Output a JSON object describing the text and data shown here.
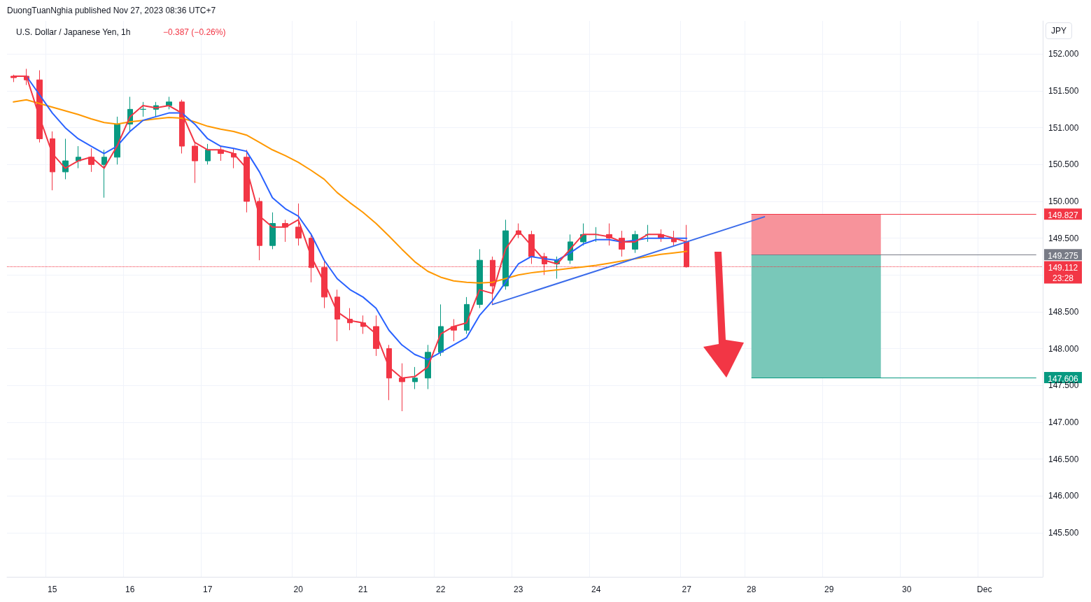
{
  "chart_data": {
    "type": "candlestick",
    "title": "U.S. Dollar / Japanese Yen, 1h",
    "subtitle": "−0.387 (−0.26%)",
    "annotations": [
      "DuongTuanNghia published Nov 27, 2023 08:36 UTC+7",
      "JPY"
    ],
    "categories": [
      null,
      null,
      null,
      "15",
      null,
      null,
      null,
      null,
      null,
      "16",
      null,
      null,
      null,
      null,
      null,
      "17",
      null,
      null,
      null,
      null,
      null,
      null,
      "20",
      null,
      null,
      null,
      null,
      "21",
      null,
      null,
      null,
      null,
      null,
      "22",
      null,
      null,
      null,
      null,
      null,
      "23",
      null,
      null,
      null,
      null,
      null,
      "24",
      null,
      null,
      null,
      null,
      null,
      null,
      "27",
      null,
      null,
      null,
      null,
      "28",
      null,
      null,
      null,
      null,
      null,
      "29",
      null,
      null,
      null,
      null,
      null,
      "30",
      null,
      null,
      null,
      null,
      null,
      "Dec",
      null,
      null,
      null,
      null
    ],
    "series": [
      {
        "colors": [
          "#f23645",
          "#f23645",
          "#f23645",
          "#f23645",
          "#089981",
          "#089981",
          "#f23645",
          "#089981",
          "#089981",
          "#089981",
          "#089981",
          "#089981",
          "#089981",
          "#f23645",
          "#f23645",
          "#089981",
          "#f23645",
          "#f23645",
          "#f23645",
          "#f23645",
          "#089981",
          "#f23645",
          "#f23645",
          "#f23645",
          "#f23645",
          "#f23645",
          "#f23645",
          "#f23645",
          "#f23645",
          "#f23645",
          "#f23645",
          "#089981",
          "#089981",
          "#089981",
          "#f23645",
          "#089981",
          "#089981",
          "#f23645",
          "#089981",
          "#f23645",
          "#f23645",
          "#f23645",
          "#089981",
          "#089981",
          "#089981",
          "#089981",
          "#f23645",
          "#f23645",
          "#089981",
          "#089981",
          "#f23645",
          "#f23645",
          "#f23645",
          null,
          null,
          null,
          null,
          null,
          null,
          null,
          null,
          null,
          null,
          null,
          null,
          null,
          null,
          null,
          null,
          null,
          null,
          null,
          null,
          null,
          null,
          null,
          null,
          null,
          null,
          null
        ],
        "ohlc": [
          [
            151.7,
            151.72,
            151.62,
            151.68
          ],
          [
            151.7,
            151.8,
            151.58,
            151.65
          ],
          [
            151.65,
            151.78,
            150.8,
            150.85
          ],
          [
            150.85,
            150.95,
            150.15,
            150.4
          ],
          [
            150.4,
            150.85,
            150.3,
            150.55
          ],
          [
            150.55,
            150.75,
            150.45,
            150.6
          ],
          [
            150.6,
            150.72,
            150.4,
            150.5
          ],
          [
            150.5,
            150.7,
            150.05,
            150.6
          ],
          [
            150.6,
            151.15,
            150.5,
            151.05
          ],
          [
            151.05,
            151.42,
            150.95,
            151.25
          ],
          [
            151.25,
            151.35,
            151.15,
            151.25
          ],
          [
            151.25,
            151.35,
            151.15,
            151.3
          ],
          [
            151.3,
            151.42,
            151.25,
            151.35
          ],
          [
            151.35,
            151.38,
            150.65,
            150.75
          ],
          [
            150.75,
            150.8,
            150.25,
            150.55
          ],
          [
            150.55,
            150.78,
            150.5,
            150.7
          ],
          [
            150.7,
            150.75,
            150.55,
            150.65
          ],
          [
            150.65,
            150.72,
            150.45,
            150.6
          ],
          [
            150.6,
            150.7,
            149.85,
            150.0
          ],
          [
            150.0,
            150.05,
            149.2,
            149.4
          ],
          [
            149.4,
            149.85,
            149.35,
            149.7
          ],
          [
            149.7,
            149.75,
            149.45,
            149.65
          ],
          [
            149.65,
            149.97,
            149.4,
            149.5
          ],
          [
            149.5,
            149.55,
            148.9,
            149.1
          ],
          [
            149.1,
            149.2,
            148.55,
            148.7
          ],
          [
            148.7,
            148.8,
            148.1,
            148.4
          ],
          [
            148.4,
            148.55,
            148.25,
            148.35
          ],
          [
            148.35,
            148.45,
            148.2,
            148.3
          ],
          [
            148.3,
            148.45,
            147.9,
            148.0
          ],
          [
            148.0,
            148.05,
            147.3,
            147.6
          ],
          [
            147.6,
            147.8,
            147.15,
            147.55
          ],
          [
            147.55,
            147.75,
            147.45,
            147.6
          ],
          [
            147.6,
            148.05,
            147.45,
            147.95
          ],
          [
            147.95,
            148.6,
            147.9,
            148.3
          ],
          [
            148.3,
            148.4,
            148.1,
            148.25
          ],
          [
            148.25,
            148.7,
            148.2,
            148.6
          ],
          [
            148.6,
            149.35,
            148.55,
            149.2
          ],
          [
            149.2,
            149.25,
            148.6,
            148.85
          ],
          [
            148.85,
            149.75,
            148.8,
            149.6
          ],
          [
            149.6,
            149.7,
            149.5,
            149.55
          ],
          [
            149.55,
            149.6,
            149.15,
            149.25
          ],
          [
            149.25,
            149.3,
            149.0,
            149.15
          ],
          [
            149.15,
            149.25,
            148.95,
            149.2
          ],
          [
            149.2,
            149.55,
            149.15,
            149.45
          ],
          [
            149.45,
            149.7,
            149.4,
            149.55
          ],
          [
            149.55,
            149.65,
            149.45,
            149.55
          ],
          [
            149.55,
            149.7,
            149.4,
            149.5
          ],
          [
            149.5,
            149.6,
            149.25,
            149.35
          ],
          [
            149.35,
            149.6,
            149.3,
            149.55
          ],
          [
            149.55,
            149.68,
            149.45,
            149.55
          ],
          [
            149.55,
            149.62,
            149.45,
            149.5
          ],
          [
            149.5,
            149.6,
            149.4,
            149.45
          ],
          [
            149.45,
            149.68,
            149.1,
            149.11
          ],
          null,
          null,
          null,
          null,
          null,
          null,
          null,
          null,
          null,
          null,
          null,
          null,
          null,
          null,
          null,
          null,
          null,
          null,
          null,
          null,
          null,
          null,
          null,
          null,
          null,
          null,
          null
        ]
      },
      {
        "type": "line",
        "color": "#ff9800",
        "values": [
          151.35,
          151.38,
          151.33,
          151.28,
          151.23,
          151.18,
          151.12,
          151.07,
          151.05,
          151.08,
          151.1,
          151.12,
          151.14,
          151.13,
          151.08,
          151.02,
          150.98,
          150.95,
          150.9,
          150.8,
          150.7,
          150.62,
          150.53,
          150.42,
          150.3,
          150.12,
          149.98,
          149.85,
          149.7,
          149.53,
          149.35,
          149.18,
          149.05,
          148.97,
          148.92,
          148.9,
          148.89,
          148.9,
          148.95,
          149.0,
          149.03,
          149.05,
          149.07,
          149.09,
          149.11,
          149.13,
          149.16,
          149.19,
          149.22,
          149.25,
          149.28,
          149.3,
          149.32,
          null,
          null,
          null,
          null,
          null,
          null,
          null,
          null,
          null,
          null,
          null,
          null,
          null,
          null,
          null,
          null,
          null,
          null,
          null,
          null,
          null,
          null,
          null,
          null,
          null,
          null,
          null
        ]
      },
      {
        "type": "line",
        "color": "#2962ff",
        "values": [
          null,
          151.7,
          151.45,
          151.2,
          151.0,
          150.85,
          150.75,
          150.65,
          150.75,
          150.95,
          151.1,
          151.15,
          151.2,
          151.2,
          151.05,
          150.85,
          150.75,
          150.72,
          150.68,
          150.4,
          150.05,
          149.9,
          149.8,
          149.55,
          149.2,
          148.95,
          148.8,
          148.7,
          148.55,
          148.25,
          148.05,
          147.92,
          147.85,
          147.95,
          148.05,
          148.15,
          148.45,
          148.65,
          148.9,
          149.15,
          149.25,
          149.22,
          149.2,
          149.3,
          149.42,
          149.48,
          149.48,
          149.45,
          149.47,
          149.5,
          149.5,
          149.5,
          149.5,
          null,
          null,
          null,
          null,
          null,
          null,
          null,
          null,
          null,
          null,
          null,
          null,
          null,
          null,
          null,
          null,
          null,
          null,
          null,
          null,
          null,
          null,
          null,
          null,
          null,
          null,
          null
        ]
      },
      {
        "type": "line",
        "color": "#f23645",
        "values": [
          151.7,
          151.7,
          151.15,
          150.65,
          150.45,
          150.55,
          150.6,
          150.45,
          150.75,
          151.15,
          151.3,
          151.27,
          151.3,
          151.2,
          150.8,
          150.7,
          150.7,
          150.65,
          150.45,
          149.8,
          149.65,
          149.65,
          149.75,
          149.25,
          148.9,
          148.5,
          148.38,
          148.35,
          148.2,
          147.75,
          147.6,
          147.62,
          147.75,
          148.2,
          148.3,
          148.35,
          148.8,
          148.75,
          149.35,
          149.6,
          149.4,
          149.2,
          149.15,
          149.35,
          149.55,
          149.55,
          149.52,
          149.45,
          149.45,
          149.55,
          149.55,
          149.5,
          149.45,
          null,
          null,
          null,
          null,
          null,
          null,
          null,
          null,
          null,
          null,
          null,
          null,
          null,
          null,
          null,
          null,
          null,
          null,
          null,
          null,
          null,
          null,
          null,
          null,
          null,
          null,
          null
        ]
      },
      {
        "type": "line",
        "color": "#3a6bea",
        "values": [
          null,
          null,
          null,
          null,
          null,
          null,
          null,
          null,
          null,
          null,
          null,
          null,
          null,
          null,
          null,
          null,
          null,
          null,
          null,
          null,
          null,
          null,
          null,
          null,
          null,
          null,
          null,
          null,
          null,
          null,
          null,
          null,
          null,
          null,
          null,
          null,
          null,
          148.6,
          null,
          null,
          null,
          null,
          null,
          null,
          null,
          null,
          null,
          null,
          null,
          null,
          null,
          null,
          null,
          null,
          null,
          null,
          null,
          null,
          149.79,
          null,
          null,
          null,
          null,
          null,
          null,
          null,
          null,
          null,
          null,
          null,
          null,
          null,
          null,
          null,
          null,
          null,
          null,
          null,
          null,
          null
        ]
      }
    ],
    "ylim": [
      144.9,
      152.45
    ],
    "yticks": [
      {
        "value": 145.5,
        "label": "145.500"
      },
      {
        "value": 146,
        "label": "146.000"
      },
      {
        "value": 146.5,
        "label": "146.500"
      },
      {
        "value": 147,
        "label": "147.000"
      },
      {
        "value": 147.5,
        "label": "147.500"
      },
      {
        "value": 148,
        "label": "148.000"
      },
      {
        "value": 148.5,
        "label": "148.500"
      },
      {
        "value": 149,
        "label": null
      },
      {
        "value": 149.5,
        "label": "149.500"
      },
      {
        "value": 150,
        "label": "150.000"
      },
      {
        "value": 150.5,
        "label": "150.500"
      },
      {
        "value": 151,
        "label": "151.000"
      },
      {
        "value": 151.5,
        "label": "151.500"
      },
      {
        "value": 152,
        "label": "152.000"
      }
    ],
    "ref_lines": [
      {
        "axis": "y",
        "value": 149.827,
        "label": "149.827",
        "color": "#f23645"
      },
      {
        "axis": "y",
        "value": 149.275,
        "label": "149.275",
        "color": "#787b86"
      },
      {
        "axis": "y",
        "value": 149.112,
        "label": "149.112\n23:28",
        "color": "#f23645",
        "line_style": "dotted"
      },
      {
        "axis": "y",
        "value": 147.606,
        "label": "147.606",
        "color": "#089981"
      }
    ],
    "bands": [
      {
        "axis": "y",
        "from": 149.275,
        "to": 149.827,
        "label": null,
        "color": "#f7939b"
      },
      {
        "axis": "y",
        "from": 147.606,
        "to": 149.275,
        "label": null,
        "color": "#79c8b9"
      }
    ],
    "grid": true,
    "marker": "none",
    "line_style": "solid"
  }
}
